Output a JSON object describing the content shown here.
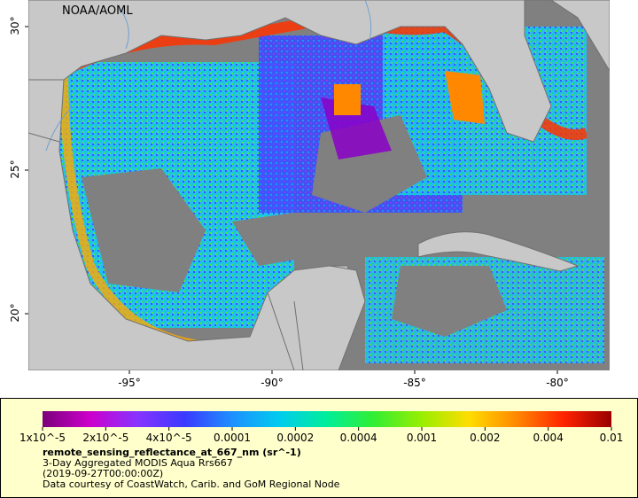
{
  "map": {
    "watermark": "NOAA/AOML",
    "lat_labels": [
      "30°",
      "25°",
      "20°"
    ],
    "lon_labels": [
      "-95°",
      "-90°",
      "-85°",
      "-80°"
    ],
    "land_color": "#c8c8c8",
    "nodata_color": "#808080",
    "border_color": "#707070",
    "river_color": "#6f9fd0"
  },
  "legend": {
    "background": "#ffffcc",
    "tick_labels": [
      "1x10^-5",
      "2x10^-5",
      "4x10^-5",
      "0.0001",
      "0.0002",
      "0.0004",
      "0.001",
      "0.002",
      "0.004",
      "0.01"
    ],
    "colormap": [
      "#7a007a",
      "#cc00cc",
      "#8833ff",
      "#3a3aff",
      "#1e90ff",
      "#00ccee",
      "#00ee99",
      "#33ee33",
      "#99ee00",
      "#ffdd00",
      "#ff8800",
      "#ff2200",
      "#990000"
    ],
    "variable": "remote_sensing_reflectance_at_667_nm (sr^-1)",
    "description": "3-Day Aggregated MODIS Aqua Rrs667",
    "time": "(2019-09-27T00:00:00Z)",
    "credit": "Data courtesy of CoastWatch, Carib. and GoM Regional Node"
  }
}
